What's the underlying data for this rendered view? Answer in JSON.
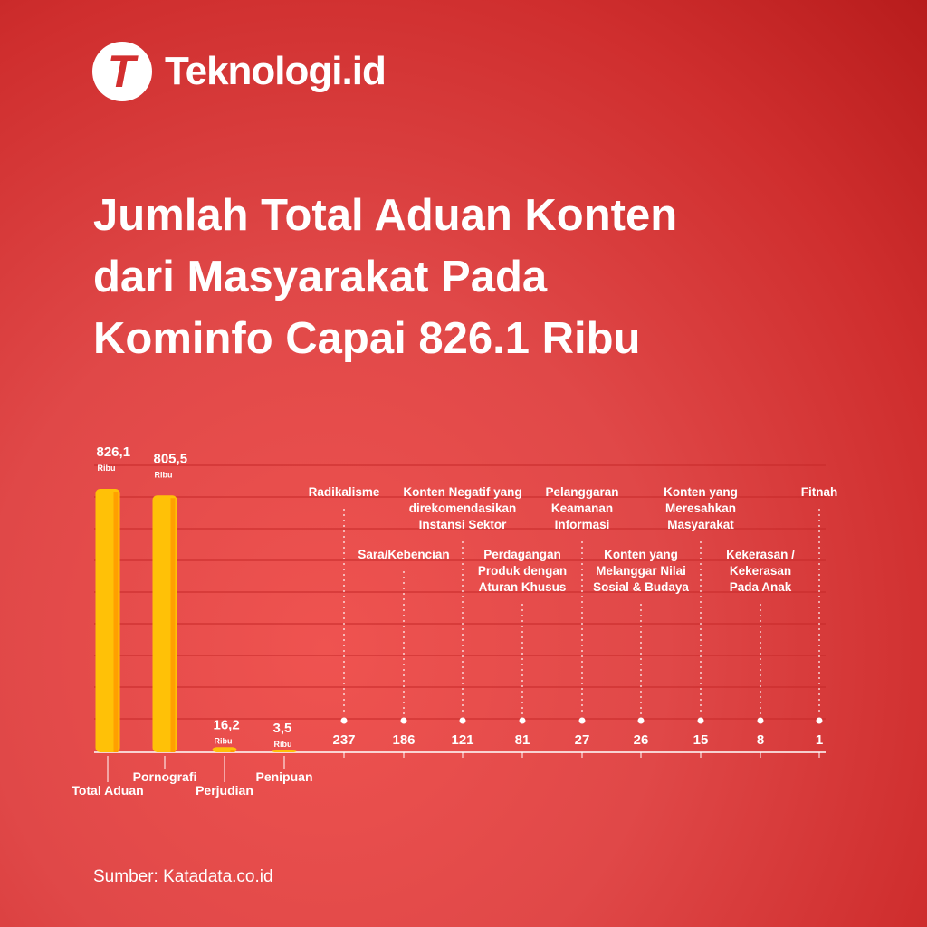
{
  "brand": {
    "logo_letter": "T",
    "name": "Teknologi.id"
  },
  "headline": {
    "line1": "Jumlah Total Aduan Konten",
    "line2": "dari Masyarakat Pada",
    "line3": "Kominfo Capai 826.1 Ribu"
  },
  "source": "Sumber: Katadata.co.id",
  "colors": {
    "bar": "#ffc107",
    "bar_edge": "#ffa000",
    "grid": "#c62828",
    "text": "#ffffff"
  },
  "chart_data": [
    {
      "type": "bar",
      "unit_label": "Ribu",
      "categories": [
        "Total Aduan",
        "Pornografi",
        "Perjudian",
        "Penipuan"
      ],
      "value_labels": [
        "826,1",
        "805,5",
        "16,2",
        "3,5"
      ],
      "values": [
        826.1,
        805.5,
        16.2,
        3.5
      ],
      "ylim": [
        0,
        826.1
      ],
      "grid": true
    },
    {
      "type": "scatter",
      "categories": [
        [
          "Radikalisme"
        ],
        [
          "Sara/Kebencian"
        ],
        [
          "Konten Negatif yang",
          "direkomendasikan",
          "Instansi Sektor"
        ],
        [
          "Perdagangan",
          "Produk dengan",
          "Aturan Khusus"
        ],
        [
          "Pelanggaran",
          "Keamanan",
          "Informasi"
        ],
        [
          "Konten yang",
          "Melanggar Nilai",
          "Sosial & Budaya"
        ],
        [
          "Konten yang",
          "Meresahkan",
          "Masyarakat"
        ],
        [
          "Kekerasan /",
          "Kekerasan",
          "Pada Anak"
        ],
        [
          "Fitnah"
        ]
      ],
      "value_labels": [
        "237",
        "186",
        "121",
        "81",
        "27",
        "26",
        "15",
        "8",
        "1"
      ],
      "values": [
        237,
        186,
        121,
        81,
        27,
        26,
        15,
        8,
        1
      ]
    }
  ]
}
